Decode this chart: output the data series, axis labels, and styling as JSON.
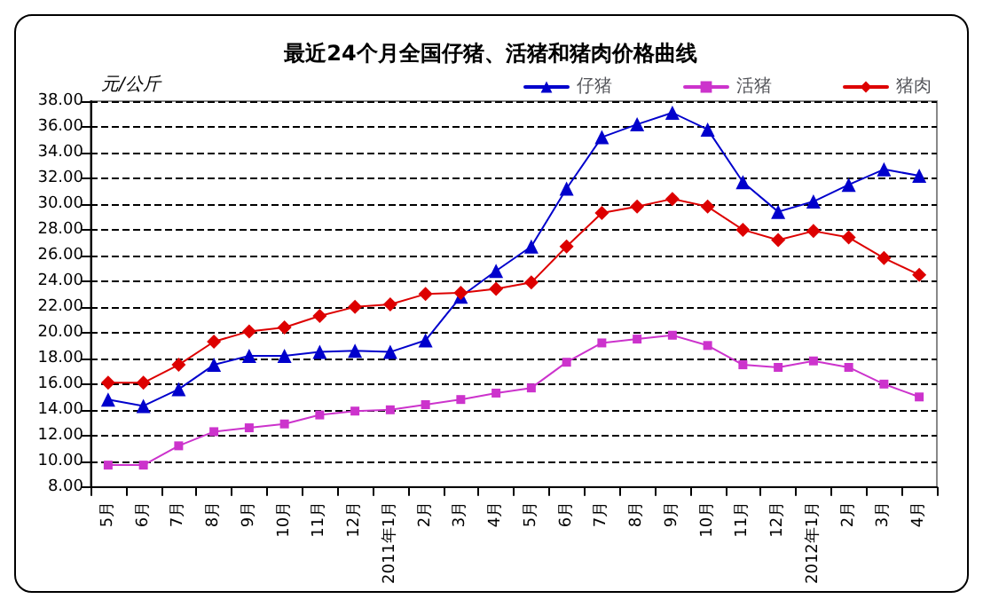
{
  "chart_data": {
    "type": "line",
    "title": "最近24个月全国仔猪、活猪和猪肉价格曲线",
    "ylabel": "元/公斤",
    "categories": [
      "5月",
      "6月",
      "7月",
      "8月",
      "9月",
      "10月",
      "11月",
      "12月",
      "2011年1月",
      "2月",
      "3月",
      "4月",
      "5月",
      "6月",
      "7月",
      "8月",
      "9月",
      "10月",
      "11月",
      "12月",
      "2012年1月",
      "2月",
      "3月",
      "4月"
    ],
    "series": [
      {
        "name": "仔猪",
        "color": "#0000cc",
        "marker": "triangle",
        "values": [
          14.8,
          14.3,
          15.6,
          17.5,
          18.2,
          18.2,
          18.5,
          18.6,
          18.5,
          19.4,
          22.8,
          24.8,
          26.7,
          31.2,
          35.2,
          36.2,
          37.1,
          35.8,
          31.7,
          29.4,
          30.2,
          31.5,
          32.7,
          32.2
        ]
      },
      {
        "name": "活猪",
        "color": "#cc33cc",
        "marker": "square",
        "values": [
          9.7,
          9.7,
          11.2,
          12.3,
          12.6,
          12.9,
          13.6,
          13.9,
          14.0,
          14.4,
          14.8,
          15.3,
          15.7,
          17.7,
          19.2,
          19.5,
          19.8,
          19.0,
          17.5,
          17.3,
          17.8,
          17.3,
          16.0,
          15.0
        ]
      },
      {
        "name": "猪肉",
        "color": "#dd0000",
        "marker": "diamond",
        "values": [
          16.1,
          16.1,
          17.5,
          19.3,
          20.1,
          20.4,
          21.3,
          22.0,
          22.2,
          23.0,
          23.1,
          23.4,
          23.9,
          26.7,
          29.3,
          29.8,
          30.4,
          29.8,
          28.0,
          27.2,
          27.9,
          27.4,
          25.8,
          24.5
        ]
      }
    ],
    "ylim": [
      8,
      38
    ],
    "yticks": [
      {
        "value": 8,
        "label": "8.00"
      },
      {
        "value": 10,
        "label": "10.00"
      },
      {
        "value": 12,
        "label": "12.00"
      },
      {
        "value": 14,
        "label": "14.00"
      },
      {
        "value": 16,
        "label": "16.00"
      },
      {
        "value": 18,
        "label": "18.00"
      },
      {
        "value": 20,
        "label": "20.00"
      },
      {
        "value": 22,
        "label": "22.00"
      },
      {
        "value": 24,
        "label": "24.00"
      },
      {
        "value": 26,
        "label": "26.00"
      },
      {
        "value": 28,
        "label": "28.00"
      },
      {
        "value": 30,
        "label": "30.00"
      },
      {
        "value": 32,
        "label": "32.00"
      },
      {
        "value": 34,
        "label": "34.00"
      },
      {
        "value": 36,
        "label": "36.00"
      },
      {
        "value": 38,
        "label": "38.00"
      }
    ],
    "grid": "y",
    "legend": "top right",
    "line_style": "solid"
  }
}
